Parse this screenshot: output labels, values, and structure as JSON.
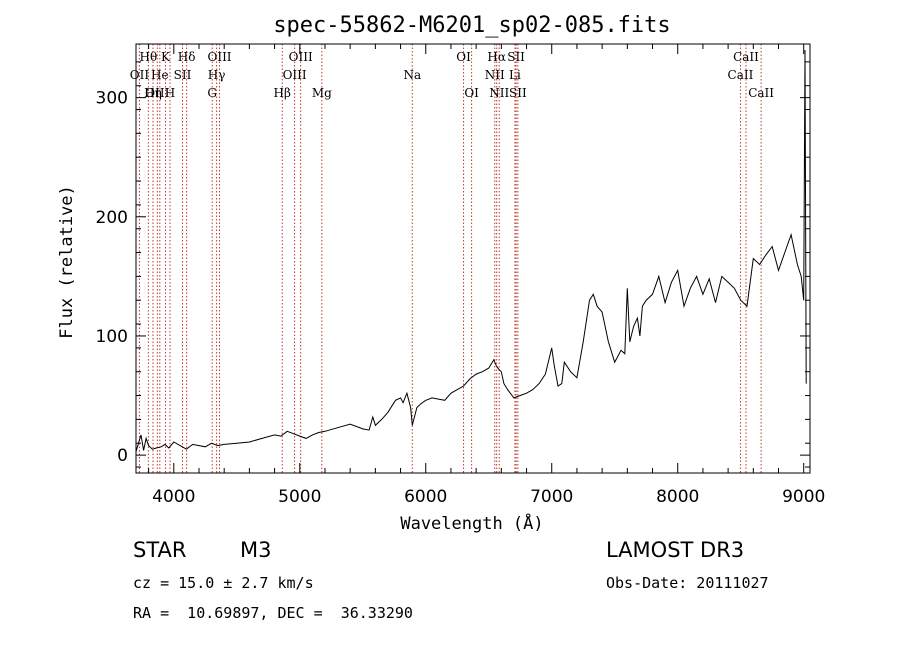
{
  "chart_data": {
    "type": "line",
    "title": "spec-55862-M6201_sp02-085.fits",
    "xlabel": "Wavelength (Å)",
    "ylabel": "Flux (relative)",
    "xlim": [
      3700,
      9050
    ],
    "ylim": [
      -15,
      345
    ],
    "xticks": [
      4000,
      5000,
      6000,
      7000,
      8000,
      9000
    ],
    "yticks": [
      0,
      100,
      200,
      300
    ],
    "grid": false,
    "series": [
      {
        "name": "spectrum",
        "x": [
          3700,
          3720,
          3740,
          3760,
          3780,
          3800,
          3830,
          3860,
          3900,
          3930,
          3960,
          4000,
          4050,
          4100,
          4150,
          4200,
          4250,
          4300,
          4350,
          4400,
          4500,
          4600,
          4700,
          4800,
          4850,
          4900,
          4950,
          5000,
          5050,
          5100,
          5150,
          5200,
          5300,
          5400,
          5500,
          5550,
          5580,
          5600,
          5650,
          5700,
          5760,
          5800,
          5820,
          5850,
          5880,
          5893,
          5900,
          5930,
          5960,
          6000,
          6050,
          6100,
          6150,
          6200,
          6250,
          6300,
          6350,
          6400,
          6450,
          6500,
          6540,
          6560,
          6580,
          6600,
          6620,
          6650,
          6700,
          6750,
          6800,
          6850,
          6900,
          6950,
          7000,
          7020,
          7050,
          7080,
          7100,
          7150,
          7200,
          7250,
          7300,
          7330,
          7360,
          7400,
          7450,
          7500,
          7550,
          7580,
          7600,
          7620,
          7650,
          7680,
          7700,
          7720,
          7750,
          7800,
          7850,
          7900,
          7950,
          8000,
          8050,
          8100,
          8150,
          8200,
          8250,
          8300,
          8350,
          8400,
          8450,
          8500,
          8550,
          8600,
          8650,
          8700,
          8750,
          8800,
          8850,
          8900,
          8950,
          8980,
          9000,
          9010,
          9020
        ],
        "values": [
          3,
          10,
          17,
          4,
          14,
          8,
          5,
          6,
          7,
          9,
          6,
          11,
          8,
          5,
          9,
          8,
          7,
          10,
          8,
          9,
          10,
          11,
          14,
          17,
          16,
          20,
          18,
          16,
          14,
          17,
          19,
          20,
          23,
          26,
          22,
          21,
          32,
          25,
          30,
          36,
          46,
          48,
          44,
          52,
          40,
          25,
          28,
          40,
          43,
          46,
          48,
          47,
          46,
          52,
          55,
          58,
          64,
          68,
          70,
          73,
          80,
          75,
          72,
          70,
          60,
          55,
          48,
          50,
          52,
          55,
          60,
          68,
          90,
          75,
          58,
          60,
          78,
          70,
          65,
          95,
          130,
          135,
          125,
          120,
          95,
          78,
          88,
          85,
          140,
          95,
          108,
          115,
          100,
          125,
          130,
          135,
          150,
          128,
          145,
          155,
          125,
          140,
          150,
          135,
          148,
          128,
          150,
          145,
          140,
          130,
          125,
          165,
          160,
          168,
          175,
          155,
          170,
          185,
          160,
          150,
          130,
          340,
          60
        ]
      }
    ],
    "lines": [
      {
        "name": "Hθ",
        "wl": 3798,
        "row": 0
      },
      {
        "name": "OII",
        "wl": 3727,
        "row": 1
      },
      {
        "name": "OIII",
        "wl": 3869,
        "row": 2
      },
      {
        "name": "Hη",
        "wl": 3835,
        "row": 2
      },
      {
        "name": "K",
        "wl": 3934,
        "row": 0
      },
      {
        "name": "He",
        "wl": 3889,
        "row": 1
      },
      {
        "name": "H",
        "wl": 3970,
        "row": 2
      },
      {
        "name": "SII",
        "wl": 4069,
        "row": 1
      },
      {
        "name": "Hδ",
        "wl": 4102,
        "row": 0
      },
      {
        "name": "OIII",
        "wl": 4363,
        "row": 0
      },
      {
        "name": "Hγ",
        "wl": 4340,
        "row": 1
      },
      {
        "name": "G",
        "wl": 4305,
        "row": 2
      },
      {
        "name": "OIII",
        "wl": 5007,
        "row": 0
      },
      {
        "name": "OIII",
        "wl": 4959,
        "row": 1
      },
      {
        "name": "Hβ",
        "wl": 4861,
        "row": 2
      },
      {
        "name": "Mg",
        "wl": 5175,
        "row": 2
      },
      {
        "name": "Na",
        "wl": 5893,
        "row": 1
      },
      {
        "name": "OI",
        "wl": 6300,
        "row": 0
      },
      {
        "name": "OI",
        "wl": 6364,
        "row": 2
      },
      {
        "name": "Hα",
        "wl": 6563,
        "row": 0
      },
      {
        "name": "SII",
        "wl": 6717,
        "row": 0
      },
      {
        "name": "NII",
        "wl": 6548,
        "row": 1
      },
      {
        "name": "Li",
        "wl": 6708,
        "row": 1
      },
      {
        "name": "NII",
        "wl": 6583,
        "row": 2
      },
      {
        "name": "SII",
        "wl": 6731,
        "row": 2
      },
      {
        "name": "CaII",
        "wl": 8542,
        "row": 0
      },
      {
        "name": "CaII",
        "wl": 8498,
        "row": 1
      },
      {
        "name": "CaII",
        "wl": 8662,
        "row": 2
      }
    ]
  },
  "info": {
    "class_label": "STAR",
    "subclass": "M3",
    "survey": "LAMOST DR3",
    "velocity": "cz = 15.0 ± 2.7 km/s",
    "obs_date": "Obs-Date: 20111027",
    "coordinates": "RA =  10.69897, DEC =  36.33290"
  },
  "colors": {
    "spectrum": "#000000",
    "line_markers": "#c0392b",
    "background": "#ffffff"
  }
}
